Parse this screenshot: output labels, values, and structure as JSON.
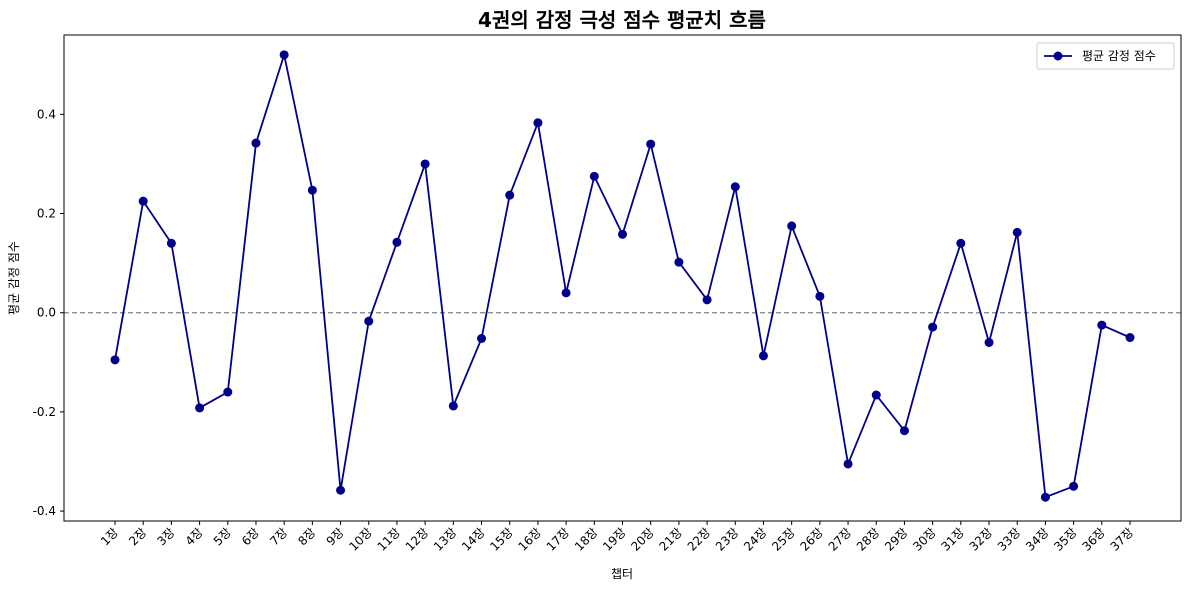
{
  "chart_data": {
    "type": "line",
    "title": "4권의 감정 극성 점수 평균치 흐름",
    "xlabel": "챕터",
    "ylabel": "평균 감정 점수",
    "categories": [
      "1장",
      "2장",
      "3장",
      "4장",
      "5장",
      "6장",
      "7장",
      "8장",
      "9장",
      "10장",
      "11장",
      "12장",
      "13장",
      "14장",
      "15장",
      "16장",
      "17장",
      "18장",
      "19장",
      "20장",
      "21장",
      "22장",
      "23장",
      "24장",
      "25장",
      "26장",
      "27장",
      "28장",
      "29장",
      "30장",
      "31장",
      "32장",
      "33장",
      "34장",
      "35장",
      "36장",
      "37장"
    ],
    "series": [
      {
        "name": "평균 감정 점수",
        "color": "#00008b",
        "marker": "circle",
        "values": [
          -0.095,
          0.225,
          0.14,
          -0.192,
          -0.16,
          0.342,
          0.52,
          0.247,
          -0.358,
          -0.017,
          0.142,
          0.3,
          -0.188,
          -0.052,
          0.237,
          0.383,
          0.04,
          0.275,
          0.158,
          0.34,
          0.102,
          0.026,
          0.254,
          -0.087,
          0.175,
          0.033,
          -0.305,
          -0.166,
          -0.238,
          -0.029,
          0.14,
          -0.06,
          0.162,
          -0.372,
          -0.35,
          -0.025,
          -0.05
        ]
      }
    ],
    "ylim": [
      -0.42,
      0.56
    ],
    "yticks": [
      -0.4,
      -0.2,
      0.0,
      0.2,
      0.4
    ],
    "ytick_labels": [
      "-0.4",
      "-0.2",
      "0.0",
      "0.2",
      "0.4"
    ],
    "reference_line": {
      "y": 0,
      "style": "dashed",
      "color": "#808080"
    },
    "grid": false,
    "legend": {
      "position": "top-right"
    }
  }
}
